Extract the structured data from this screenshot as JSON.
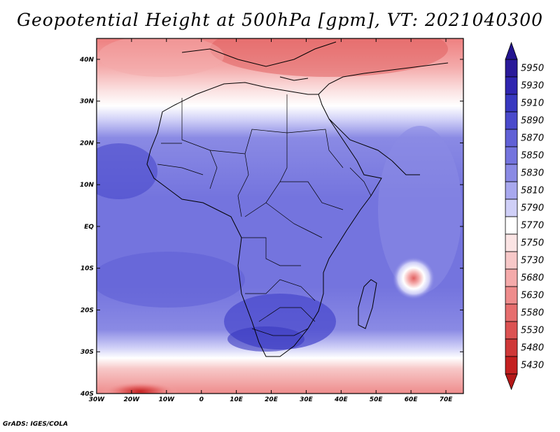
{
  "title": "Geopotential Height at 500hPa [gpm], VT: 2021040300",
  "footer": "GrADS: IGES/COLA",
  "map": {
    "lon_labels": [
      "30W",
      "20W",
      "10W",
      "0",
      "10E",
      "20E",
      "30E",
      "40E",
      "50E",
      "60E",
      "70E"
    ],
    "lat_labels": [
      "40N",
      "30N",
      "20N",
      "10N",
      "EQ",
      "10S",
      "20S",
      "30S",
      "40S"
    ],
    "lon_range": [
      -30,
      75
    ],
    "lat_range": [
      -40,
      45
    ]
  },
  "colorbar": {
    "levels": [
      "5950",
      "5930",
      "5910",
      "5890",
      "5870",
      "5850",
      "5830",
      "5810",
      "5790",
      "5770",
      "5750",
      "5730",
      "5680",
      "5630",
      "5580",
      "5530",
      "5480",
      "5430"
    ],
    "colors": [
      "#2a1a9a",
      "#2f25b0",
      "#3838c0",
      "#4a4acc",
      "#6060d6",
      "#7474de",
      "#8a8ae4",
      "#a8a8ee",
      "#cfcff7",
      "#ffffff",
      "#fbe4e4",
      "#f7c8c8",
      "#f4aaaa",
      "#ee8c8c",
      "#e66e6e",
      "#dc5252",
      "#cf3838",
      "#c42020"
    ]
  },
  "chart_data": {
    "type": "heatmap",
    "title": "Geopotential Height at 500hPa [gpm], VT: 2021040300",
    "variable": "geopotential height at 500 hPa",
    "units": "gpm",
    "valid_time": "2021040300",
    "x_range_deg": [
      -30,
      75
    ],
    "y_range_deg": [
      -40,
      45
    ],
    "contour_levels": [
      5430,
      5480,
      5530,
      5580,
      5630,
      5680,
      5730,
      5750,
      5770,
      5790,
      5810,
      5830,
      5850,
      5870,
      5890,
      5910,
      5930,
      5950
    ],
    "features": [
      {
        "region": "Mediterranean / Middle East (north edge)",
        "approx_value": 5630
      },
      {
        "region": "Southern ocean near 40S, 20W",
        "approx_value": 5480
      },
      {
        "region": "Tropical Africa and Indian Ocean",
        "approx_value": 5860
      },
      {
        "region": "Southern Africa high near 25S, 20E",
        "approx_value": 5900
      },
      {
        "region": "Low near 13S, 61E",
        "approx_value": 5680
      }
    ]
  }
}
